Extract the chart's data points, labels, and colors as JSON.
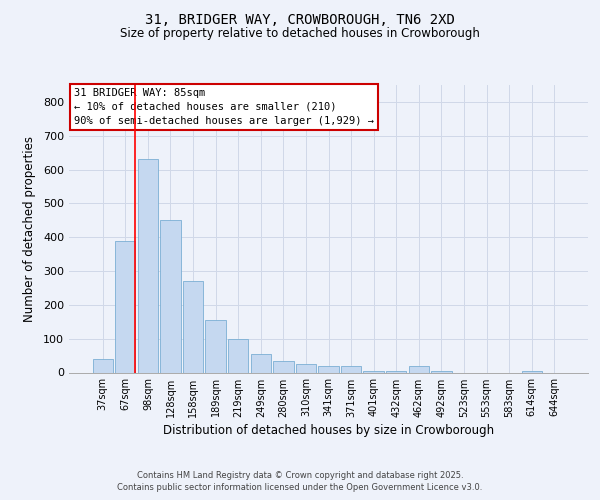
{
  "title": "31, BRIDGER WAY, CROWBOROUGH, TN6 2XD",
  "subtitle": "Size of property relative to detached houses in Crowborough",
  "xlabel": "Distribution of detached houses by size in Crowborough",
  "ylabel": "Number of detached properties",
  "bar_labels": [
    "37sqm",
    "67sqm",
    "98sqm",
    "128sqm",
    "158sqm",
    "189sqm",
    "219sqm",
    "249sqm",
    "280sqm",
    "310sqm",
    "341sqm",
    "371sqm",
    "401sqm",
    "432sqm",
    "462sqm",
    "492sqm",
    "523sqm",
    "553sqm",
    "583sqm",
    "614sqm",
    "644sqm"
  ],
  "bar_values": [
    40,
    390,
    630,
    450,
    270,
    155,
    100,
    55,
    35,
    25,
    20,
    20,
    5,
    5,
    20,
    5,
    0,
    0,
    0,
    5,
    0
  ],
  "bar_color": "#c5d8f0",
  "bar_edge_color": "#7bafd4",
  "grid_color": "#d0d8e8",
  "bg_color": "#eef2fa",
  "red_line_x": 1.45,
  "annotation_title": "31 BRIDGER WAY: 85sqm",
  "annotation_line2": "← 10% of detached houses are smaller (210)",
  "annotation_line3": "90% of semi-detached houses are larger (1,929) →",
  "annotation_box_color": "#ffffff",
  "annotation_border_color": "#cc0000",
  "ylim": [
    0,
    850
  ],
  "yticks": [
    0,
    100,
    200,
    300,
    400,
    500,
    600,
    700,
    800
  ],
  "footer_line1": "Contains HM Land Registry data © Crown copyright and database right 2025.",
  "footer_line2": "Contains public sector information licensed under the Open Government Licence v3.0."
}
